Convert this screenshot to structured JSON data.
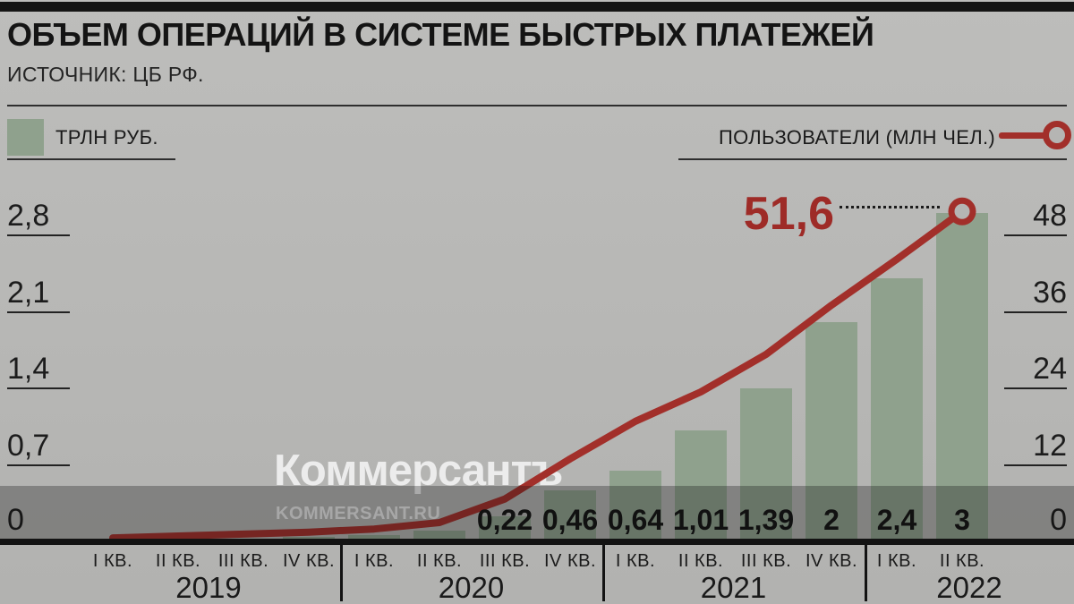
{
  "header": {
    "title": "ОБЪЕМ ОПЕРАЦИЙ В СИСТЕМЕ БЫСТРЫХ ПЛАТЕЖЕЙ",
    "source": "ИСТОЧНИК: ЦБ РФ."
  },
  "legend": {
    "bars_label": "ТРЛН РУБ.",
    "line_label": "ПОЛЬЗОВАТЕЛИ (МЛН ЧЕЛ.)"
  },
  "watermark": {
    "brand": "Коммерсантъ",
    "site": "KOMMERSANT.RU"
  },
  "annotation": {
    "users_label": "51,6"
  },
  "colors": {
    "bar": "#8fa18d",
    "line": "#a22f2a",
    "annotation": "#9e2b27",
    "background": "#b7b7b5",
    "band_overlay": "rgba(18,18,16,0.30)"
  },
  "chart_data": {
    "type": "combo",
    "title": "ОБЪЕМ ОПЕРАЦИЙ В СИСТЕМЕ БЫСТРЫХ ПЛАТЕЖЕЙ",
    "source": "ИСТОЧНИК: ЦБ РФ.",
    "legend_position": "top",
    "grid": "short tick dashes at both side axes only",
    "x_groups": [
      {
        "year": "2019",
        "quarters": [
          "I КВ.",
          "II КВ.",
          "III КВ.",
          "IV КВ."
        ]
      },
      {
        "year": "2020",
        "quarters": [
          "I КВ.",
          "II КВ.",
          "III КВ.",
          "IV КВ."
        ]
      },
      {
        "year": "2021",
        "quarters": [
          "I КВ.",
          "II КВ.",
          "III КВ.",
          "IV КВ."
        ]
      },
      {
        "year": "2022",
        "quarters": [
          "I КВ.",
          "II КВ."
        ]
      }
    ],
    "categories": [
      "I КВ. 2019",
      "II КВ. 2019",
      "III КВ. 2019",
      "IV КВ. 2019",
      "I КВ. 2020",
      "II КВ. 2020",
      "III КВ. 2020",
      "IV КВ. 2020",
      "I КВ. 2021",
      "II КВ. 2021",
      "III КВ. 2021",
      "IV КВ. 2021",
      "I КВ. 2022",
      "II КВ. 2022"
    ],
    "series": [
      {
        "name": "ТРЛН РУБ.",
        "type": "bar",
        "color": "#8fa18d",
        "values": [
          0.01,
          0.015,
          0.02,
          0.03,
          0.05,
          0.09,
          0.22,
          0.46,
          0.64,
          1.01,
          1.39,
          2,
          2.4,
          3
        ],
        "bar_labels": [
          "",
          "",
          "",
          "",
          "",
          "",
          "0,22",
          "0,46",
          "0,64",
          "1,01",
          "1,39",
          "2",
          "2,4",
          "3"
        ]
      },
      {
        "name": "ПОЛЬЗОВАТЕЛИ (МЛН ЧЕЛ.)",
        "type": "line",
        "color": "#a22f2a",
        "values": [
          0.4,
          0.7,
          1.0,
          1.3,
          1.8,
          2.8,
          6.5,
          12.8,
          18.7,
          23.3,
          29.2,
          36.9,
          44.1,
          51.6
        ],
        "end_label": "51,6"
      }
    ],
    "left_axis": {
      "unit": "ТРЛН РУБ.",
      "ticks": [
        "0",
        "0,7",
        "1,4",
        "2,1",
        "2,8"
      ],
      "range": [
        0,
        2.8
      ]
    },
    "right_axis": {
      "unit": "ПОЛЬЗОВАТЕЛИ (МЛН ЧЕЛ.)",
      "ticks": [
        "0",
        "12",
        "24",
        "36",
        "48"
      ],
      "range": [
        0,
        48
      ]
    }
  }
}
